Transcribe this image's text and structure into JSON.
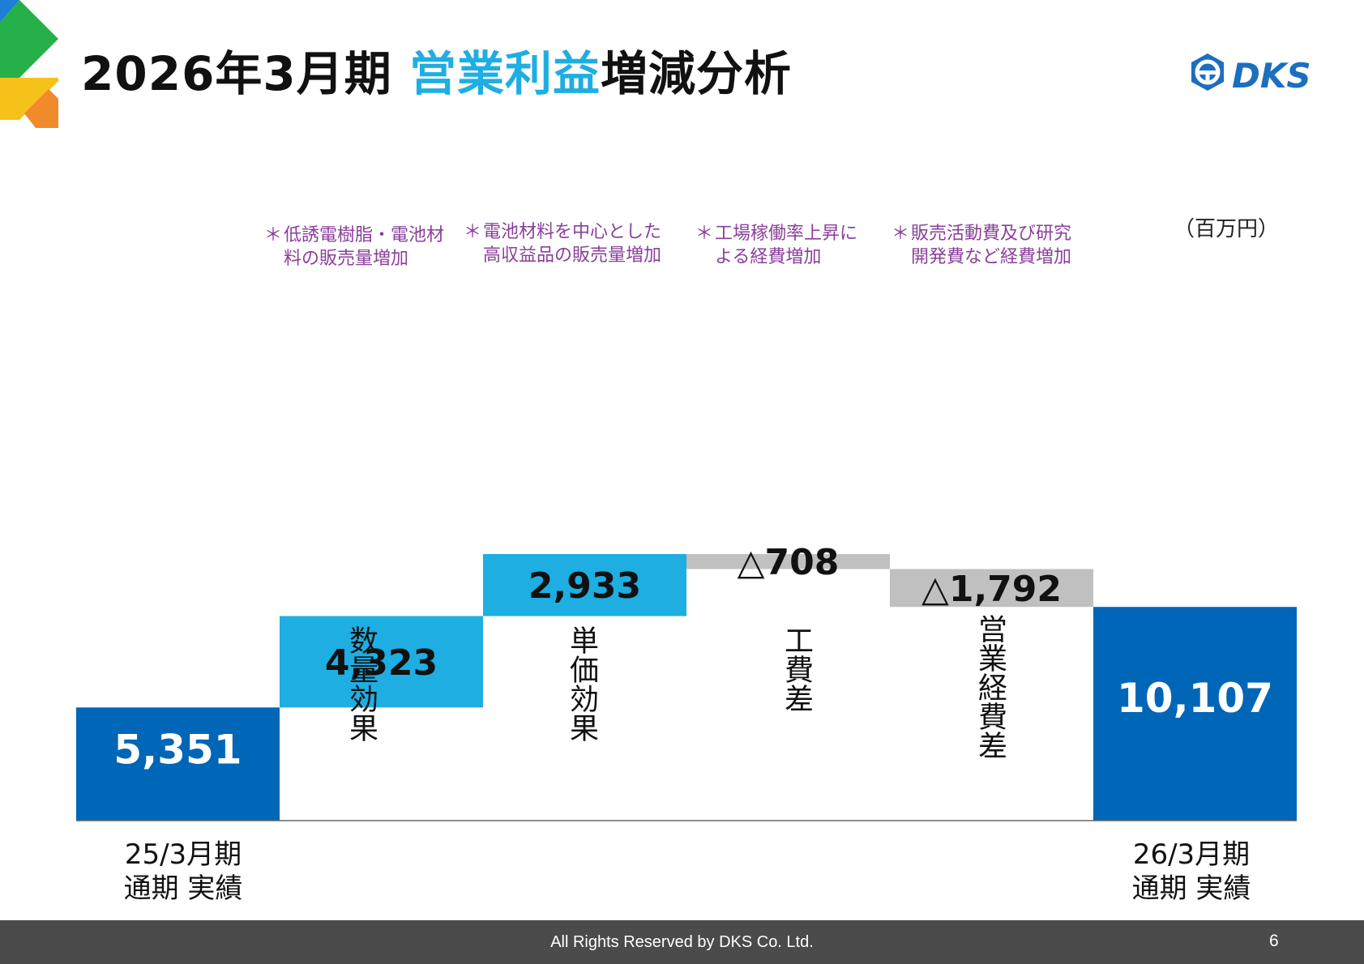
{
  "header": {
    "title_part1": "2026年3月期 ",
    "title_highlight": "営業利益",
    "title_part2": "増減分析",
    "logo_text": "DKS",
    "accent": "#1eaee2"
  },
  "chart_data": {
    "type": "waterfall",
    "unit": "（百万円）",
    "steps": [
      {
        "kind": "total",
        "value": 5351,
        "label": "5,351",
        "x_label": [
          "25/3月期",
          "通期 実績"
        ],
        "color": "#0066b8"
      },
      {
        "kind": "delta",
        "value": 4323,
        "label": "4,323",
        "category": "数量効果",
        "note": [
          "低誘電樹脂・電池材",
          "料の販売量増加"
        ],
        "color": "#1eaee2"
      },
      {
        "kind": "delta",
        "value": 2933,
        "label": "2,933",
        "category": "単価効果",
        "note": [
          "電池材料を中心とした",
          "高収益品の販売量増加"
        ],
        "color": "#1eaee2"
      },
      {
        "kind": "delta",
        "value": -708,
        "label": "△708",
        "category": "工費差",
        "note": [
          "工場稼働率上昇に",
          "よる経費増加"
        ],
        "color": "#c0c0c0"
      },
      {
        "kind": "delta",
        "value": -1792,
        "label": "△1,792",
        "category": "営業経費差",
        "note": [
          "販売活動費及び研究",
          "開発費など経費増加"
        ],
        "color": "#c0c0c0"
      },
      {
        "kind": "total",
        "value": 10107,
        "label": "10,107",
        "x_label": [
          "26/3月期",
          "通期 実績"
        ],
        "color": "#0066b8"
      }
    ]
  },
  "notes_marker": "＊",
  "footer": {
    "copyright": "All Rights Reserved by DKS Co. Ltd.",
    "page": "6"
  }
}
